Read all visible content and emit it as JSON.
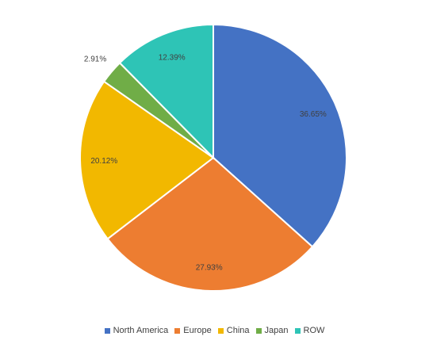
{
  "chart_data": {
    "type": "pie",
    "title": "",
    "categories": [
      "North America",
      "Europe",
      "China",
      "Japan",
      "ROW"
    ],
    "values": [
      36.65,
      27.93,
      20.12,
      2.91,
      12.39
    ],
    "labels": [
      "36.65%",
      "27.93%",
      "20.12%",
      "2.91%",
      "12.39%"
    ],
    "colors": [
      "#4472C4",
      "#ED7D31",
      "#F2B800",
      "#70AD47",
      "#2EC4B6"
    ],
    "legend_position": "bottom",
    "start_angle": "12 o'clock",
    "direction": "clockwise"
  }
}
